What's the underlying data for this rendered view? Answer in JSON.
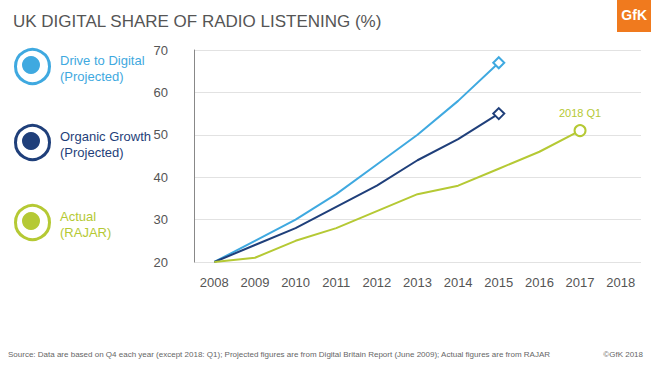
{
  "chart_data": {
    "type": "line",
    "title": "UK DIGITAL SHARE OF RADIO LISTENING (%)",
    "categories": [
      "2008",
      "2009",
      "2010",
      "2011",
      "2012",
      "2013",
      "2014",
      "2015",
      "2016",
      "2017",
      "2018"
    ],
    "series": [
      {
        "name": "Drive to Digital (Projected)",
        "color": "#3fa9e0",
        "marker": "diamond",
        "values": [
          20,
          25,
          30,
          36,
          43,
          50,
          58,
          67,
          null,
          null,
          null
        ]
      },
      {
        "name": "Organic Growth (Projected)",
        "color": "#1f3f7a",
        "marker": "diamond",
        "values": [
          20,
          24,
          28,
          33,
          38,
          44,
          49,
          55,
          null,
          null,
          null
        ]
      },
      {
        "name": "Actual (RAJAR)",
        "color": "#b5c934",
        "marker": "circle",
        "values": [
          20,
          21,
          25,
          28,
          32,
          36,
          38,
          42,
          46,
          51,
          null
        ]
      }
    ],
    "annotations": [
      {
        "series": "Actual (RAJAR)",
        "x": "2017",
        "text": "2018 Q1"
      }
    ],
    "ylim": [
      20,
      70
    ],
    "yticks": [
      20,
      30,
      40,
      50,
      60,
      70
    ],
    "grid": true,
    "legend": "left",
    "source": "Source: Data are based on Q4 each year (except 2018: Q1); Projected figures are from Digital Britain Report (June 2009); Actual figures are from RAJAR",
    "copyright": "©GfK 2018",
    "logo": "GfK"
  }
}
